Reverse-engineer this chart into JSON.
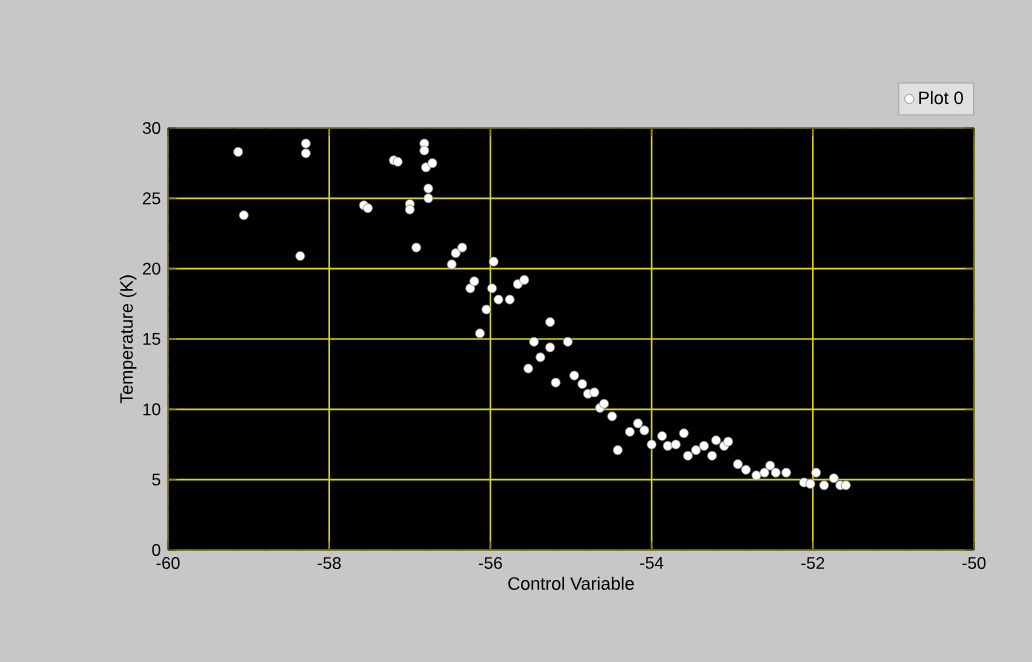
{
  "chart_data": {
    "type": "scatter",
    "xlabel": "Control Variable",
    "ylabel": "Temperature (K)",
    "xlim": [
      -60,
      -50
    ],
    "ylim": [
      0,
      30
    ],
    "xticks": [
      -60,
      -58,
      -56,
      -54,
      -52,
      -50
    ],
    "yticks": [
      0,
      5,
      10,
      15,
      20,
      25,
      30
    ],
    "grid": true,
    "legend": "top right",
    "marker": "circle",
    "series": [
      {
        "name": "Plot 0",
        "color": "#ffffff",
        "x": [
          -59.13,
          -59.06,
          -58.29,
          -58.29,
          -58.36,
          -57.57,
          -57.52,
          -57.2,
          -57.15,
          -57.0,
          -57.0,
          -56.82,
          -56.82,
          -56.77,
          -56.77,
          -56.8,
          -56.72,
          -56.92,
          -56.48,
          -56.43,
          -56.35,
          -55.96,
          -56.25,
          -56.2,
          -56.05,
          -55.98,
          -55.9,
          -55.76,
          -55.66,
          -55.58,
          -56.13,
          -55.26,
          -55.46,
          -55.38,
          -55.26,
          -55.04,
          -55.53,
          -55.19,
          -54.96,
          -54.86,
          -54.79,
          -54.71,
          -54.64,
          -54.59,
          -54.49,
          -54.42,
          -54.27,
          -54.17,
          -54.09,
          -54.0,
          -53.87,
          -53.8,
          -53.7,
          -53.6,
          -53.55,
          -53.45,
          -53.35,
          -53.25,
          -53.2,
          -53.1,
          -53.05,
          -52.93,
          -52.83,
          -52.7,
          -52.6,
          -52.53,
          -52.46,
          -52.33,
          -52.11,
          -52.03,
          -51.96,
          -51.86,
          -51.74,
          -51.66,
          -51.59
        ],
        "values": [
          28.3,
          23.8,
          28.9,
          28.2,
          20.9,
          24.5,
          24.3,
          27.7,
          27.6,
          24.6,
          24.2,
          28.9,
          28.4,
          25.7,
          25.0,
          27.2,
          27.5,
          21.5,
          20.3,
          21.1,
          21.5,
          20.5,
          18.6,
          19.1,
          17.1,
          18.6,
          17.8,
          17.8,
          18.9,
          19.2,
          15.4,
          16.2,
          14.8,
          13.7,
          14.4,
          14.8,
          12.9,
          11.9,
          12.4,
          11.8,
          11.1,
          11.2,
          10.1,
          10.4,
          9.5,
          7.1,
          8.4,
          9.0,
          8.5,
          7.5,
          8.1,
          7.4,
          7.5,
          8.3,
          6.7,
          7.1,
          7.4,
          6.7,
          7.8,
          7.4,
          7.7,
          6.1,
          5.7,
          5.3,
          5.5,
          6.0,
          5.5,
          5.5,
          4.8,
          4.7,
          5.5,
          4.6,
          5.1,
          4.6,
          4.6
        ]
      }
    ]
  }
}
